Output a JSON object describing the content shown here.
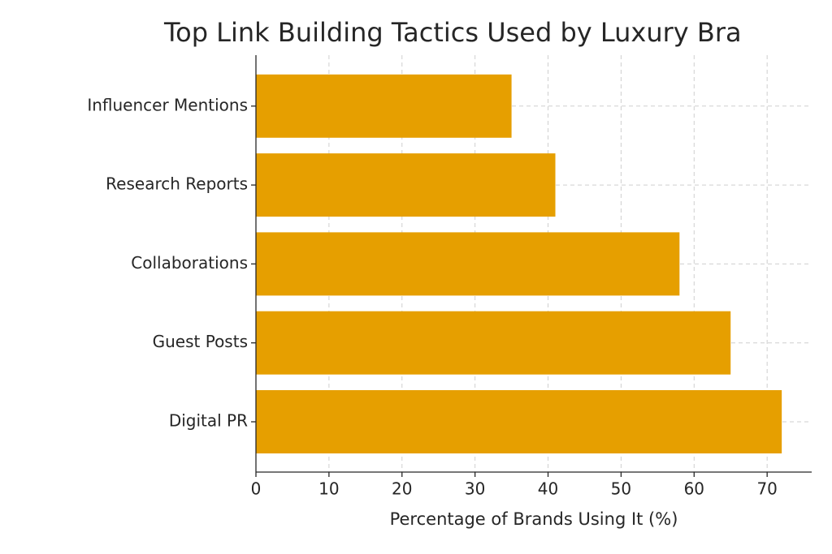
{
  "chart_data": {
    "type": "barh",
    "title": "Top Link Building Tactics Used by Luxury Bra",
    "xlabel": "Percentage of Brands Using It (%)",
    "categories": [
      "Digital PR",
      "Guest Posts",
      "Collaborations",
      "Research Reports",
      "Influencer Mentions"
    ],
    "values": [
      72,
      65,
      58,
      41,
      35
    ],
    "color": "#E69F00",
    "xlim": [
      0,
      76.1
    ],
    "xticks": [
      0,
      10,
      20,
      30,
      40,
      50,
      60,
      70
    ],
    "grid": true
  }
}
